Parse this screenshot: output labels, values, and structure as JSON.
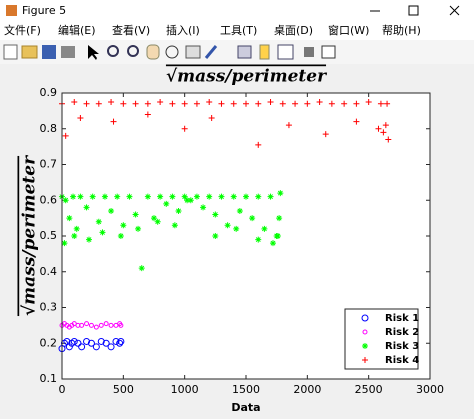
{
  "window": {
    "title": "Figure 5"
  },
  "menu": [
    "文件(F)",
    "编辑(E)",
    "查看(V)",
    "插入(I)",
    "工具(T)",
    "桌面(D)",
    "窗口(W)",
    "帮助(H)"
  ],
  "chart_data": {
    "type": "scatter",
    "title": "√mass/perimeter",
    "y_label": "√mass/perimeter",
    "x_label": "Data",
    "xlim": [
      0,
      3000
    ],
    "xticks": [
      0,
      500,
      1000,
      1500,
      2000,
      2500,
      3000
    ],
    "ylim": [
      0.1,
      0.9
    ],
    "yticks": [
      0.1,
      0.2,
      0.3,
      0.4,
      0.5,
      0.6,
      0.7,
      0.8,
      0.9
    ],
    "grid": false,
    "legend": "lower right",
    "series": [
      {
        "name": "Risk 1",
        "color": "#0000ff",
        "marker": "o",
        "x": [
          0,
          20,
          40,
          60,
          80,
          100,
          130,
          160,
          200,
          240,
          280,
          320,
          360,
          400,
          440,
          470,
          480
        ],
        "values": [
          0.185,
          0.2,
          0.205,
          0.19,
          0.2,
          0.205,
          0.2,
          0.19,
          0.205,
          0.2,
          0.19,
          0.205,
          0.2,
          0.19,
          0.205,
          0.2,
          0.205
        ]
      },
      {
        "name": "Risk 2",
        "color": "#ff00ff",
        "marker": "o-small",
        "x": [
          0,
          20,
          40,
          60,
          80,
          100,
          130,
          160,
          200,
          240,
          280,
          320,
          360,
          400,
          440,
          470,
          480
        ],
        "values": [
          0.25,
          0.255,
          0.25,
          0.245,
          0.25,
          0.255,
          0.25,
          0.25,
          0.255,
          0.25,
          0.245,
          0.25,
          0.255,
          0.25,
          0.25,
          0.255,
          0.25
        ]
      },
      {
        "name": "Risk 3",
        "color": "#00ff00",
        "marker": "*",
        "x": [
          0,
          30,
          60,
          90,
          120,
          150,
          200,
          250,
          300,
          350,
          400,
          450,
          500,
          550,
          600,
          650,
          700,
          750,
          800,
          850,
          900,
          950,
          1000,
          1050,
          1100,
          1150,
          1200,
          1250,
          1300,
          1350,
          1400,
          1450,
          1500,
          1550,
          1600,
          1650,
          1700,
          1750,
          1780,
          20,
          100,
          220,
          330,
          480,
          620,
          780,
          920,
          1020,
          1250,
          1420,
          1600,
          1720,
          1760,
          1770
        ],
        "values": [
          0.61,
          0.6,
          0.55,
          0.61,
          0.52,
          0.61,
          0.58,
          0.61,
          0.54,
          0.61,
          0.57,
          0.61,
          0.53,
          0.61,
          0.56,
          0.41,
          0.61,
          0.55,
          0.61,
          0.59,
          0.61,
          0.57,
          0.61,
          0.6,
          0.61,
          0.58,
          0.61,
          0.56,
          0.61,
          0.53,
          0.61,
          0.57,
          0.61,
          0.55,
          0.61,
          0.52,
          0.61,
          0.5,
          0.62,
          0.48,
          0.5,
          0.49,
          0.51,
          0.5,
          0.52,
          0.54,
          0.53,
          0.6,
          0.5,
          0.52,
          0.49,
          0.48,
          0.5,
          0.55
        ]
      },
      {
        "name": "Risk 4",
        "color": "#ff0000",
        "marker": "+",
        "x": [
          0,
          100,
          200,
          300,
          400,
          500,
          600,
          700,
          800,
          900,
          1000,
          1100,
          1200,
          1300,
          1400,
          1500,
          1600,
          1700,
          1800,
          1900,
          2000,
          2100,
          2200,
          2300,
          2400,
          2500,
          2600,
          2650,
          30,
          150,
          420,
          700,
          1000,
          1220,
          1600,
          1850,
          2150,
          2400,
          2580,
          2620,
          2640,
          2660
        ],
        "values": [
          0.87,
          0.875,
          0.87,
          0.87,
          0.875,
          0.87,
          0.87,
          0.87,
          0.875,
          0.87,
          0.87,
          0.87,
          0.875,
          0.87,
          0.87,
          0.87,
          0.87,
          0.875,
          0.87,
          0.87,
          0.87,
          0.875,
          0.87,
          0.87,
          0.87,
          0.875,
          0.87,
          0.87,
          0.78,
          0.83,
          0.82,
          0.84,
          0.8,
          0.83,
          0.755,
          0.81,
          0.785,
          0.82,
          0.8,
          0.79,
          0.81,
          0.77
        ]
      }
    ]
  }
}
